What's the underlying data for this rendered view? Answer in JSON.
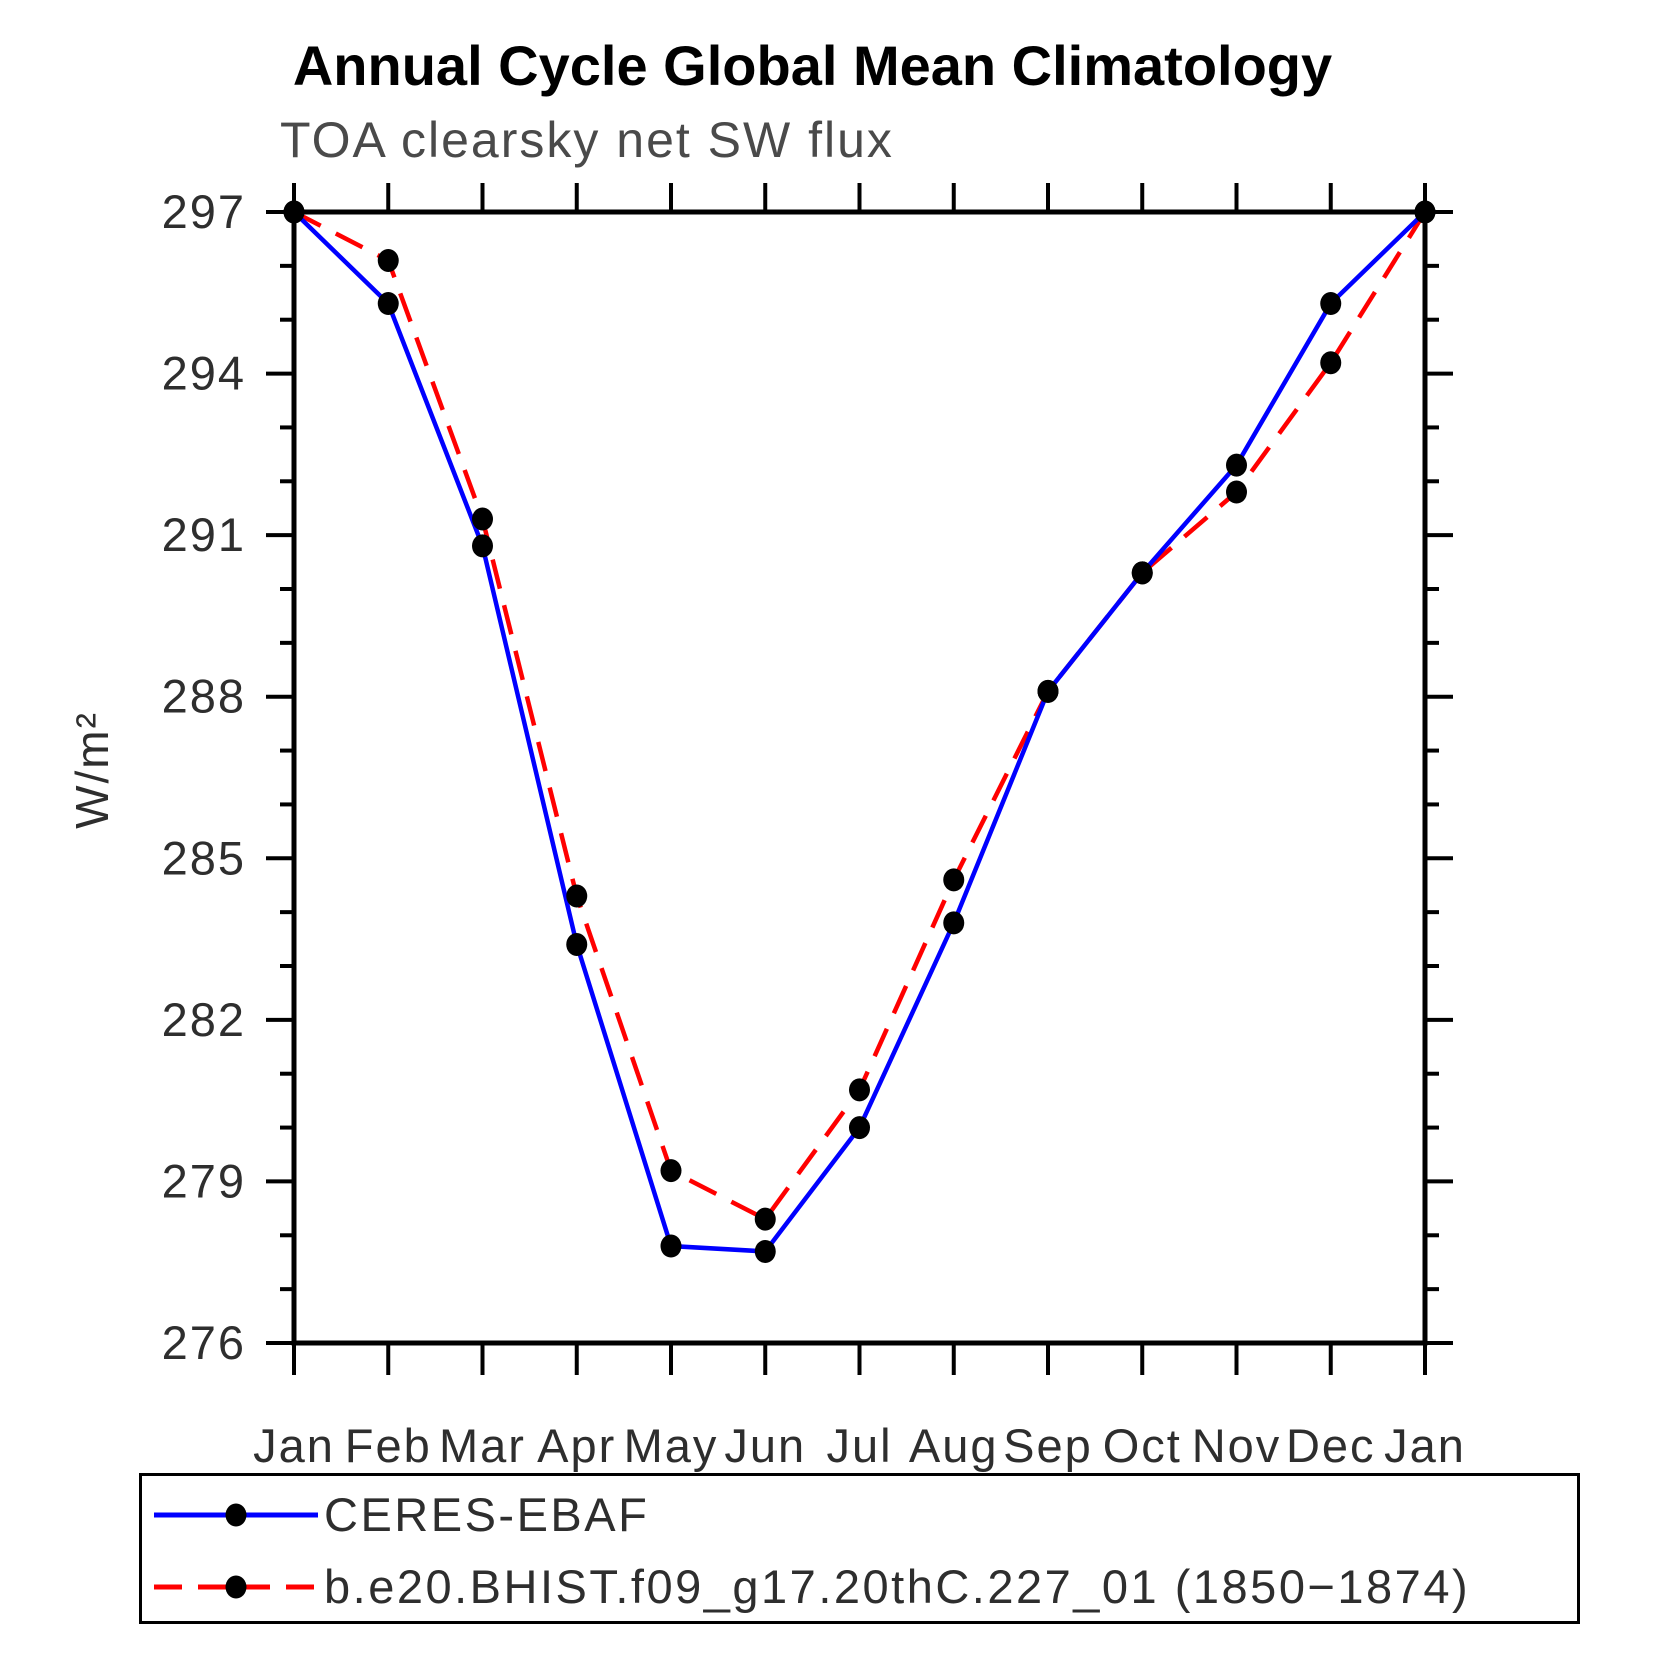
{
  "title": "Annual Cycle Global Mean Climatology",
  "subtitle": "TOA clearsky net SW flux",
  "chart_data": {
    "type": "line",
    "x_categories": [
      "Jan",
      "Feb",
      "Mar",
      "Apr",
      "May",
      "Jun",
      "Jul",
      "Aug",
      "Sep",
      "Oct",
      "Nov",
      "Dec",
      "Jan"
    ],
    "ylabel": "W/m²",
    "ylim": [
      276,
      297
    ],
    "ytick_labels": [
      297,
      294,
      291,
      288,
      285,
      282,
      279,
      276
    ],
    "ytick_major_step": 3,
    "ytick_minor_step": 1,
    "grid": false,
    "legend_position": "bottom",
    "marker": {
      "shape": "circle",
      "color": "#000000"
    },
    "series": [
      {
        "name": "CERES-EBAF",
        "color": "#0000ff",
        "line_style": "solid",
        "values": [
          297.0,
          295.3,
          290.8,
          283.4,
          277.8,
          277.7,
          280.0,
          283.8,
          288.1,
          290.3,
          292.3,
          295.3,
          297.0
        ]
      },
      {
        "name": "b.e20.BHIST.f09_g17.20thC.227_01 (1850−1874)",
        "color": "#ff0000",
        "line_style": "dashed",
        "values": [
          297.0,
          296.1,
          291.3,
          284.3,
          279.2,
          278.3,
          280.7,
          284.6,
          288.1,
          290.3,
          291.8,
          294.2,
          297.0
        ]
      }
    ]
  }
}
